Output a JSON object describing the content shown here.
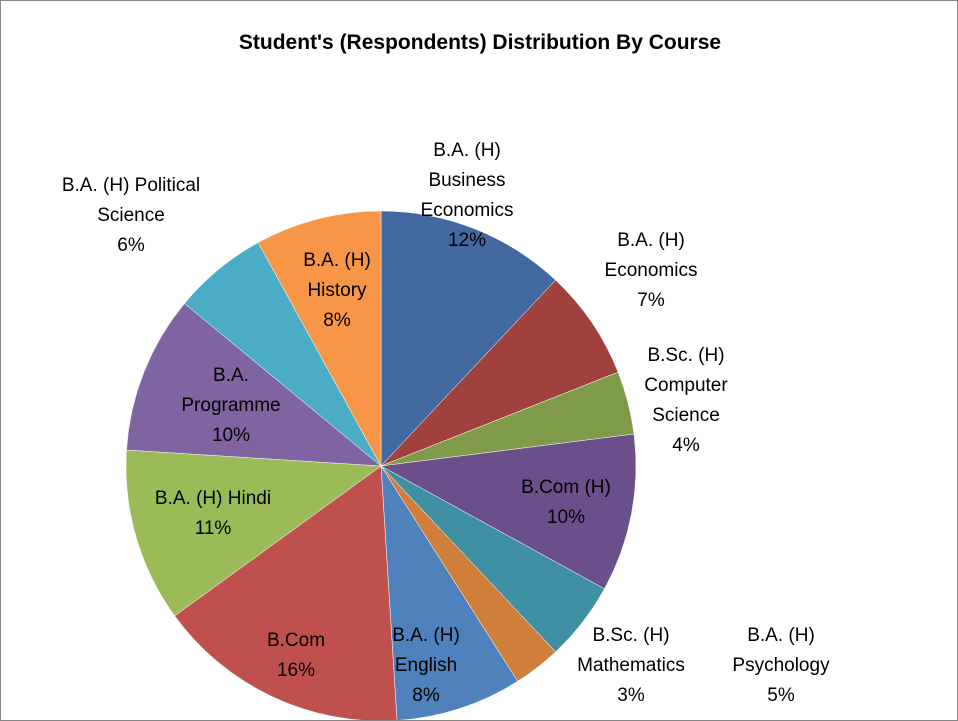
{
  "chart_data": {
    "type": "pie",
    "title": "Student's (Respondents) Distribution By Course",
    "categories": [
      "B.A. (H) Business Economics",
      "B.A. (H) Economics",
      "B.Sc. (H) Computer Science",
      "B.Com (H)",
      "B.A. (H) Psychology",
      "B.Sc. (H) Mathematics",
      "B.A. (H) English",
      "B.Com",
      "B.A. (H) Hindi",
      "B.A. Programme",
      "B.A. (H) Political Science",
      "B.A. (H) History"
    ],
    "values": [
      12,
      7,
      4,
      10,
      5,
      3,
      8,
      16,
      11,
      10,
      6,
      8
    ],
    "value_labels": [
      "12%",
      "7%",
      "4%",
      "10%",
      "5%",
      "3%",
      "8%",
      "16%",
      "11%",
      "10%",
      "6%",
      "8%"
    ],
    "colors": [
      "#4169a0",
      "#a0413e",
      "#7f9a48",
      "#6a4f8a",
      "#3f8fa2",
      "#d07f3a",
      "#4f81bd",
      "#c0504d",
      "#9bbb59",
      "#8064a2",
      "#4bacc6",
      "#f79646"
    ]
  }
}
